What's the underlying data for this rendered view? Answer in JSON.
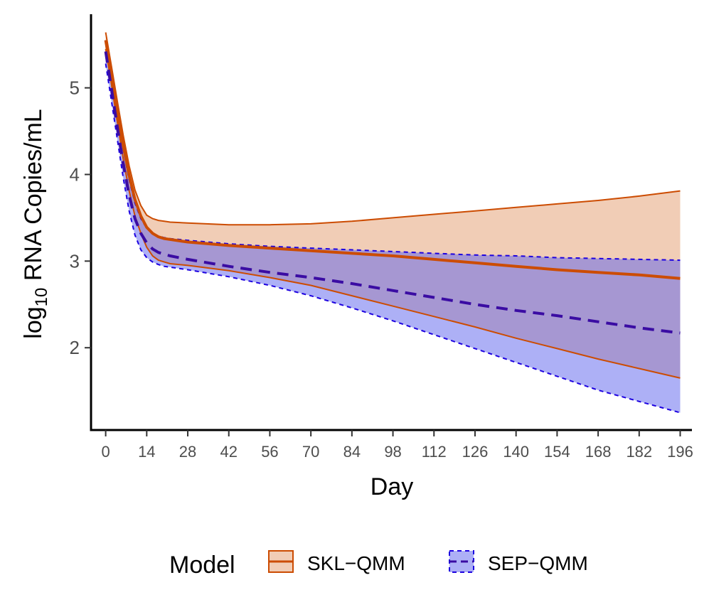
{
  "chart_data": {
    "type": "area",
    "title": "",
    "xlabel": "Day",
    "ylabel": {
      "prefix": "log",
      "subscript": "10",
      "suffix": " RNA Copies/mL"
    },
    "xlim": [
      -5,
      200
    ],
    "ylim": [
      1.05,
      5.85
    ],
    "x_ticks": [
      0,
      14,
      28,
      42,
      56,
      70,
      84,
      98,
      112,
      126,
      140,
      154,
      168,
      182,
      196
    ],
    "y_ticks": [
      2,
      3,
      4,
      5
    ],
    "legend": {
      "title": "Model",
      "position": "bottom"
    },
    "series": [
      {
        "name": "SKL−QMM",
        "color": "#cc4c02",
        "fill": "#e49b6e",
        "fill_opacity": 0.5,
        "line_style": "solid",
        "x": [
          0,
          2,
          4,
          6,
          8,
          10,
          12,
          14,
          16,
          18,
          20,
          22,
          28,
          42,
          56,
          70,
          84,
          98,
          112,
          126,
          140,
          154,
          168,
          182,
          196
        ],
        "mean": [
          5.55,
          5.14,
          4.73,
          4.34,
          3.99,
          3.71,
          3.52,
          3.39,
          3.32,
          3.28,
          3.26,
          3.25,
          3.22,
          3.18,
          3.15,
          3.12,
          3.09,
          3.06,
          3.02,
          2.98,
          2.94,
          2.9,
          2.87,
          2.84,
          2.8
        ],
        "upper": [
          5.64,
          5.24,
          4.84,
          4.45,
          4.1,
          3.82,
          3.64,
          3.53,
          3.49,
          3.47,
          3.46,
          3.45,
          3.44,
          3.42,
          3.42,
          3.43,
          3.46,
          3.5,
          3.54,
          3.58,
          3.62,
          3.66,
          3.7,
          3.75,
          3.81
        ],
        "lower": [
          5.45,
          5.03,
          4.6,
          4.18,
          3.81,
          3.52,
          3.32,
          3.16,
          3.06,
          3.01,
          2.99,
          2.97,
          2.95,
          2.89,
          2.81,
          2.72,
          2.6,
          2.48,
          2.36,
          2.24,
          2.11,
          1.99,
          1.87,
          1.76,
          1.65
        ]
      },
      {
        "name": "SEP−QMM",
        "color": "#1c00e0",
        "mean_color": "#3a0ca3",
        "fill": "#5b62ed",
        "fill_opacity": 0.5,
        "line_style": "dashed",
        "x": [
          0,
          2,
          4,
          6,
          8,
          10,
          12,
          14,
          16,
          18,
          20,
          22,
          28,
          42,
          56,
          70,
          84,
          98,
          112,
          126,
          140,
          154,
          168,
          182,
          196
        ],
        "mean": [
          5.42,
          4.98,
          4.54,
          4.12,
          3.76,
          3.49,
          3.32,
          3.21,
          3.14,
          3.1,
          3.08,
          3.06,
          3.02,
          2.94,
          2.87,
          2.81,
          2.74,
          2.66,
          2.58,
          2.5,
          2.43,
          2.37,
          2.3,
          2.23,
          2.17
        ],
        "upper": [
          5.55,
          5.12,
          4.7,
          4.29,
          3.94,
          3.67,
          3.49,
          3.38,
          3.32,
          3.29,
          3.27,
          3.26,
          3.24,
          3.2,
          3.17,
          3.15,
          3.13,
          3.11,
          3.09,
          3.07,
          3.06,
          3.04,
          3.03,
          3.02,
          3.01
        ],
        "lower": [
          5.28,
          4.84,
          4.4,
          3.96,
          3.58,
          3.3,
          3.13,
          3.04,
          2.99,
          2.96,
          2.94,
          2.93,
          2.9,
          2.82,
          2.72,
          2.6,
          2.46,
          2.31,
          2.15,
          1.99,
          1.83,
          1.67,
          1.51,
          1.38,
          1.25
        ]
      }
    ]
  }
}
